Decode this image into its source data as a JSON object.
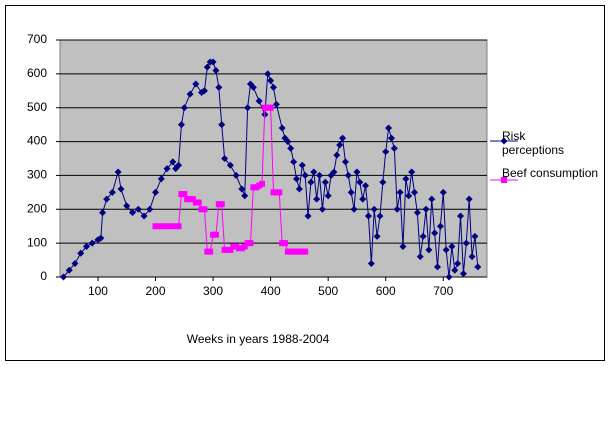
{
  "chart_data": {
    "type": "line",
    "x_label": "Weeks in years 1988-2004",
    "xlim": [
      34,
      776
    ],
    "xticks": [
      100,
      200,
      300,
      400,
      500,
      600,
      700
    ],
    "ylim": [
      0,
      700
    ],
    "yticks": [
      0,
      100,
      200,
      300,
      400,
      500,
      600,
      700
    ],
    "grid": true,
    "legend": "right",
    "series": [
      {
        "name": "Risk perceptions",
        "color": "#000080",
        "marker": "diamond",
        "x": [
          40,
          50,
          60,
          70,
          80,
          90,
          100,
          105,
          108,
          115,
          125,
          135,
          140,
          150,
          160,
          170,
          180,
          190,
          200,
          210,
          220,
          230,
          235,
          240,
          245,
          250,
          260,
          270,
          280,
          285,
          290,
          295,
          300,
          305,
          310,
          315,
          320,
          330,
          340,
          350,
          355,
          360,
          365,
          370,
          380,
          390,
          395,
          400,
          405,
          410,
          420,
          425,
          430,
          435,
          440,
          445,
          450,
          455,
          460,
          465,
          470,
          475,
          480,
          485,
          490,
          495,
          500,
          505,
          510,
          515,
          520,
          525,
          530,
          535,
          540,
          545,
          550,
          555,
          560,
          565,
          570,
          575,
          580,
          585,
          590,
          595,
          600,
          605,
          610,
          615,
          620,
          625,
          630,
          635,
          640,
          645,
          650,
          655,
          660,
          665,
          670,
          675,
          680,
          685,
          690,
          695,
          700,
          705,
          710,
          715,
          720,
          725,
          730,
          735,
          740,
          745,
          750,
          755,
          760
        ],
        "values": [
          0,
          20,
          40,
          70,
          90,
          100,
          110,
          115,
          190,
          230,
          250,
          310,
          260,
          210,
          190,
          200,
          180,
          200,
          250,
          290,
          320,
          340,
          320,
          330,
          450,
          500,
          540,
          570,
          545,
          550,
          620,
          635,
          635,
          610,
          560,
          450,
          350,
          330,
          300,
          260,
          240,
          500,
          570,
          560,
          520,
          480,
          600,
          580,
          560,
          510,
          440,
          410,
          400,
          380,
          340,
          290,
          260,
          330,
          300,
          180,
          280,
          310,
          230,
          300,
          200,
          280,
          240,
          300,
          310,
          360,
          390,
          410,
          340,
          300,
          250,
          200,
          310,
          280,
          230,
          270,
          180,
          40,
          200,
          120,
          180,
          280,
          370,
          440,
          410,
          380,
          200,
          250,
          90,
          290,
          240,
          310,
          250,
          190,
          60,
          120,
          200,
          80,
          230,
          130,
          30,
          150,
          250,
          80,
          0,
          90,
          20,
          40,
          180,
          10,
          100,
          230,
          60,
          120,
          30
        ]
      },
      {
        "name": "Beef consumption",
        "color": "#ff00ff",
        "marker": "square",
        "x": [
          200,
          210,
          220,
          230,
          240,
          245,
          250,
          255,
          260,
          265,
          270,
          275,
          280,
          285,
          290,
          295,
          300,
          305,
          310,
          315,
          320,
          325,
          330,
          335,
          340,
          345,
          350,
          355,
          360,
          365,
          370,
          375,
          380,
          385,
          390,
          395,
          400,
          405,
          410,
          415,
          420,
          425,
          430,
          435,
          440,
          445,
          450,
          455,
          460
        ],
        "values": [
          150,
          150,
          150,
          150,
          150,
          245,
          245,
          230,
          230,
          230,
          220,
          220,
          200,
          200,
          75,
          75,
          125,
          125,
          215,
          215,
          80,
          80,
          80,
          90,
          90,
          85,
          85,
          90,
          100,
          100,
          265,
          265,
          270,
          275,
          500,
          500,
          500,
          250,
          250,
          250,
          100,
          100,
          75,
          75,
          75,
          75,
          75,
          75,
          75
        ]
      }
    ]
  }
}
